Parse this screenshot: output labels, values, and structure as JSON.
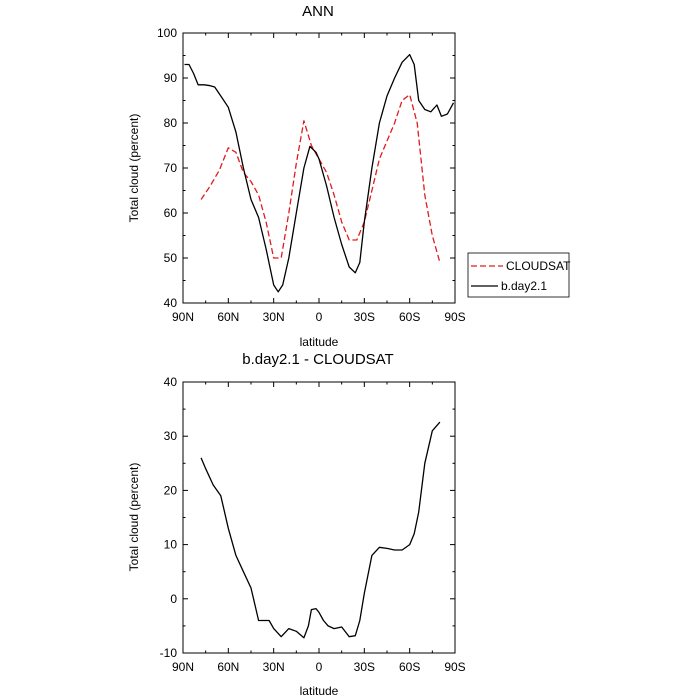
{
  "chart_data": [
    {
      "type": "line",
      "title": "ANN",
      "xlabel": "latitude",
      "ylabel": "Total cloud (percent)",
      "xlim": [
        90,
        -90
      ],
      "ylim": [
        40,
        100
      ],
      "xticks": [
        90,
        60,
        30,
        0,
        -30,
        -60,
        -90
      ],
      "xtick_labels": [
        "90N",
        "60N",
        "30N",
        "0",
        "30S",
        "60S",
        "90S"
      ],
      "yticks": [
        40,
        50,
        60,
        70,
        80,
        90,
        100
      ],
      "ytick_labels": [
        "40",
        "50",
        "60",
        "70",
        "80",
        "90",
        "100"
      ],
      "legend": {
        "placement": "right-bottom-outside"
      },
      "series": [
        {
          "name": "CLOUDSAT",
          "color": "#e31a1c",
          "dash": "dashed",
          "x": [
            78,
            72,
            66,
            60,
            55,
            50,
            45,
            40,
            35,
            30,
            25,
            20,
            15,
            10,
            5,
            0,
            -5,
            -10,
            -15,
            -20,
            -25,
            -30,
            -35,
            -40,
            -45,
            -50,
            -55,
            -60,
            -65,
            -70,
            -75,
            -80
          ],
          "y": [
            63,
            66,
            69.5,
            74.5,
            73.5,
            69,
            67,
            64,
            58,
            50,
            50,
            60,
            71,
            80.5,
            75,
            72,
            69,
            64,
            58,
            54,
            54,
            58,
            65,
            72,
            76,
            80,
            85,
            86.3,
            80,
            64,
            55,
            49
          ]
        },
        {
          "name": "b.day2.1",
          "color": "#000000",
          "dash": "solid",
          "x": [
            89,
            86,
            83,
            80,
            76,
            72,
            69,
            65,
            60,
            55,
            50,
            45,
            40,
            35,
            30,
            27,
            24,
            20,
            15,
            10,
            6,
            2,
            0,
            -5,
            -10,
            -15,
            -20,
            -24,
            -27,
            -30,
            -35,
            -40,
            -45,
            -50,
            -55,
            -60,
            -63,
            -66,
            -70,
            -74,
            -78,
            -81,
            -85,
            -89
          ],
          "y": [
            93,
            93,
            91,
            88.5,
            88.5,
            88.3,
            88,
            86,
            83.5,
            78,
            70,
            63,
            59,
            52,
            44,
            42.5,
            44,
            50,
            60,
            70,
            74.8,
            73.5,
            72,
            66,
            59,
            53,
            48,
            46.7,
            49,
            58,
            70,
            80,
            86,
            90,
            93.5,
            95.2,
            93,
            85,
            83,
            82.5,
            84,
            81.5,
            82,
            84.5
          ]
        }
      ]
    },
    {
      "type": "line",
      "title": "b.day2.1 - CLOUDSAT",
      "xlabel": "latitude",
      "ylabel": "Total cloud (percent)",
      "xlim": [
        90,
        -90
      ],
      "ylim": [
        -10,
        40
      ],
      "xticks": [
        90,
        60,
        30,
        0,
        -30,
        -60,
        -90
      ],
      "xtick_labels": [
        "90N",
        "60N",
        "30N",
        "0",
        "30S",
        "60S",
        "90S"
      ],
      "yticks": [
        -10,
        0,
        10,
        20,
        30,
        40
      ],
      "ytick_labels": [
        "-10",
        "0",
        "10",
        "20",
        "30",
        "40"
      ],
      "series": [
        {
          "name": "b.day2.1 - CLOUDSAT",
          "color": "#000000",
          "dash": "solid",
          "x": [
            78,
            75,
            70,
            65,
            60,
            55,
            50,
            45,
            40,
            36,
            33,
            30,
            25,
            20,
            15,
            10,
            7,
            5,
            2,
            0,
            -3,
            -6,
            -10,
            -15,
            -20,
            -24,
            -27,
            -30,
            -35,
            -40,
            -45,
            -50,
            -55,
            -60,
            -63,
            -66,
            -70,
            -75,
            -80
          ],
          "y": [
            26,
            24,
            21,
            19,
            13,
            8,
            5,
            2,
            -4,
            -4,
            -4,
            -5.5,
            -7,
            -5.5,
            -6,
            -7.2,
            -5,
            -2,
            -1.8,
            -2.5,
            -4,
            -5,
            -5.5,
            -5.2,
            -7,
            -6.8,
            -4,
            1,
            8,
            9.5,
            9.3,
            9,
            9,
            10,
            12,
            16,
            25,
            31,
            32.6
          ]
        }
      ]
    }
  ]
}
